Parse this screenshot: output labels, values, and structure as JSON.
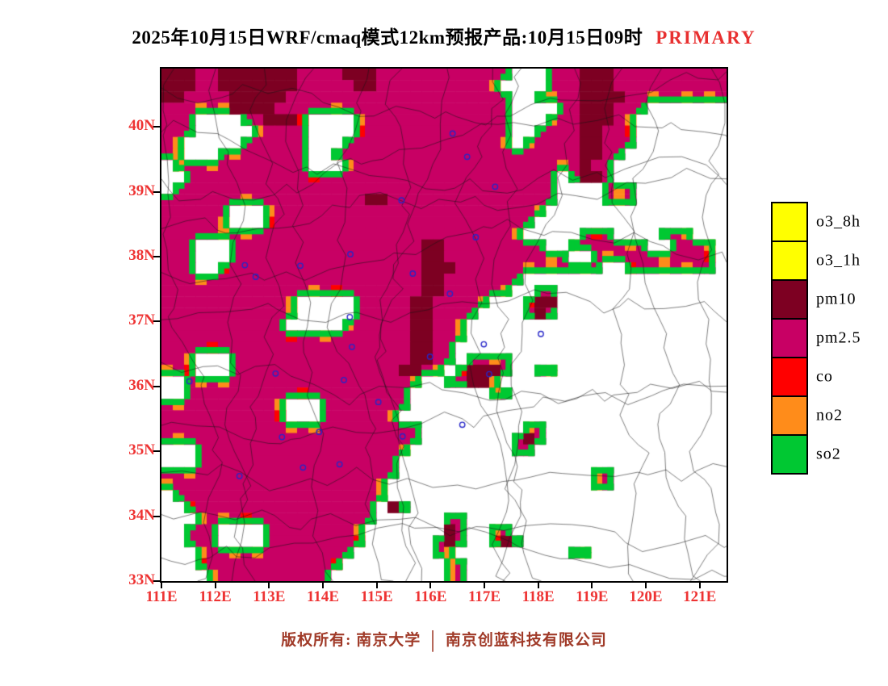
{
  "title": {
    "main": "2025年10月15日WRF/cmaq模式12km预报产品:10月15日09时",
    "highlight": "PRIMARY",
    "highlight_color": "#e83030"
  },
  "map": {
    "x_tick_labels": [
      "111E",
      "112E",
      "113E",
      "114E",
      "115E",
      "116E",
      "117E",
      "118E",
      "119E",
      "120E",
      "121E"
    ],
    "y_tick_labels": [
      "40N",
      "39N",
      "38N",
      "37N",
      "36N",
      "35N",
      "34N",
      "33N"
    ],
    "lon_range": [
      111,
      121.5
    ],
    "lat_range": [
      33,
      40.9
    ],
    "tick_label_color": "#ee3333",
    "frame_color": "#000000",
    "boundary_line_color": "#141414",
    "marker_color": "#2626c8",
    "field_colors": {
      "background": "#ffffff",
      "pm25": "#c80064",
      "pm10": "#7d0022",
      "so2_edge": "#00c832",
      "no2_edge": "#ff8c1a",
      "co_edge": "#ff0000"
    },
    "grid_key": {
      ".": "clean",
      "M": "pm2.5",
      "D": "pm10"
    },
    "grid": [
      "DDDMMDDDDDDDMMMMDDDMMMMMMMMMMMM...MMMDDDMMMMMMMMMM",
      "DDDMMDDDDDDDMMMMMDDMMMMMMMMMMM....MMMDDDMMMMMMMMMM",
      "DDMMMMDDDDDMMMMMMMMMMMMMMMMMMMM..MMMMDDDDMMMMMMMMM",
      "MMMMMMDDDDMMMMMMMMMMMMMMMMMMMMM....MMDDDMMM.......",
      "MMM....MMDDDM....MMMMMMMMMMMMMM...MMMDDDMM........",
      "MMM.....MMMMM....MMMMMMMMMMMMMM..MMMMDDMMM........",
      "MM.....MMMMMM...MMMMMMMMMMMMMMM.MMMMMDDMMM........",
      "MM...MMMMMMMM..MMMMMMMMMMMMMMMMMMMMMMDDMM.........",
      ".MMMMMMMMMMMM...MMMMMMMMMMMMMMMMMMMMMDMM..........",
      "..MMMMMMMMMMMMMMMMMMMMMMMMMMMMMMMMM.MDDM..........",
      ".MMMMMMMMMMMMMMMMMMMMMMMMMMMMMMMMMM....MMM........",
      "MMMMMMMMMMMMMMMMMMDDMMMMMMMMMMMMMMM....MMM........",
      "MMMMMM...MMMMMMMMMMMMMMMMMMMMMMMMM................",
      "MMMMMM...MMMMMMMMMMMMMMMMMMMMMMMM.................",
      "MMMMMMMMMMMMMMMMMMMMMMMMMMMMMMMM.....MMM....MMM...",
      "MMM...MMMMMMMMMMMMMMMMMDDMMMMMMMMM..MMMMMMM..MMMM.",
      "MMM...MMMMMMMMMMMMMMMMMDDMMMMMMMMMMM..MMMMMMMMMMM.",
      "MMM..MMMMMMMMMMMMMMMMMMDDDMMMMMMMMMMMMM..MMMMMMMM.",
      "MMMMMMMMMMMMMMMMMMMMMMMDDMMMMMMM..................",
      "MMMMMMMMMMMMMMMMMMMMMMMDDMMMMMM..MM...............",
      "MMMMMMMMMMMM.....MMMMMDDMMMMM...MDD...............",
      "MMMMMMMMMMMM.....MMMMMDDMMMM....MDM...............",
      "MMMMMMMMMMM.....MMMMMMDDMMM.......................",
      "MMMMMMMMMMMMMMMMMMMMMMDDMMM.......................",
      "MMMMMMMMMMMMMMMMMMMMMMDDMM........................",
      "MMM...MMMMMMMMMMMMMMMMDDMM.MMMM...................",
      "MMM...MMMMMMMMMMMMMMMDDMM.MDDDM..MM...............",
      "..MMMMMMMMMMMMMMMMMMMMM..MMDDM....................",
      "..MMMMMMMMMMMMMMMMMMMM.......MM...................",
      "MMMMMMMMMMM...MMMMMMMM............................",
      "MMMMMMMMMMM...MMMMMMM.............................",
      "MMMMMMMMMMMMMMMMMMMMMMM.........MM................",
      "MMMMMMMMMMMMMMMMMMMMMMM........MDM................",
      "...MMMMMMMMMMMMMMMMMMM.........MM.................",
      "...MMMMMMMMMMMMMMMMMM.............................",
      "MMMMMMMMMMMMMMMMMMMMM.................MM..........",
      "MMMMMMMMMMMMMMMMMMMM..................MM..........",
      ".MMMMMMMMMMMMMMMMMMM..............................",
      "..MMMMMMMMMMMMMMMMM.DM............................",
      "...MMMMMMMMMMMMMMMM......MM.......................",
      "..MMM....MMMMMMMMM.......DM..MM...................",
      "..MMM....MMMMMMMMM......MDM..MDM..................",
      "...MMMMMMMMMMMMMM.......MM..........MM............",
      "...MMMMMMMMMMMMM.........MM.......................",
      "....MMMMMMMMMMM..........MM......................."
    ],
    "city_markers": [
      [
        116.41,
        39.9
      ],
      [
        116.68,
        39.54
      ],
      [
        117.2,
        39.08
      ],
      [
        115.46,
        38.87
      ],
      [
        116.84,
        38.3
      ],
      [
        114.51,
        38.04
      ],
      [
        112.55,
        37.87
      ],
      [
        113.58,
        37.86
      ],
      [
        115.67,
        37.74
      ],
      [
        112.75,
        37.69
      ],
      [
        116.36,
        37.43
      ],
      [
        114.5,
        37.07
      ],
      [
        118.05,
        36.81
      ],
      [
        116.99,
        36.65
      ],
      [
        114.54,
        36.61
      ],
      [
        115.99,
        36.46
      ],
      [
        113.12,
        36.2
      ],
      [
        117.09,
        36.19
      ],
      [
        114.39,
        36.1
      ],
      [
        111.52,
        36.08
      ],
      [
        115.03,
        35.76
      ],
      [
        116.59,
        35.41
      ],
      [
        113.93,
        35.3
      ],
      [
        115.48,
        35.23
      ],
      [
        113.24,
        35.22
      ],
      [
        114.31,
        34.8
      ],
      [
        113.63,
        34.75
      ],
      [
        112.45,
        34.62
      ]
    ]
  },
  "legend": {
    "items": [
      {
        "label": "o3_8h",
        "color": "#ffff00"
      },
      {
        "label": "o3_1h",
        "color": "#ffff00"
      },
      {
        "label": "pm10",
        "color": "#7d0022"
      },
      {
        "label": "pm2.5",
        "color": "#c80064"
      },
      {
        "label": "co",
        "color": "#ff0000"
      },
      {
        "label": "no2",
        "color": "#ff8c1a"
      },
      {
        "label": "so2",
        "color": "#00c832"
      }
    ]
  },
  "footer": {
    "left": "版权所有: 南京大学",
    "separator": "│",
    "right": "南京创蓝科技有限公司",
    "color": "#a03a28"
  }
}
